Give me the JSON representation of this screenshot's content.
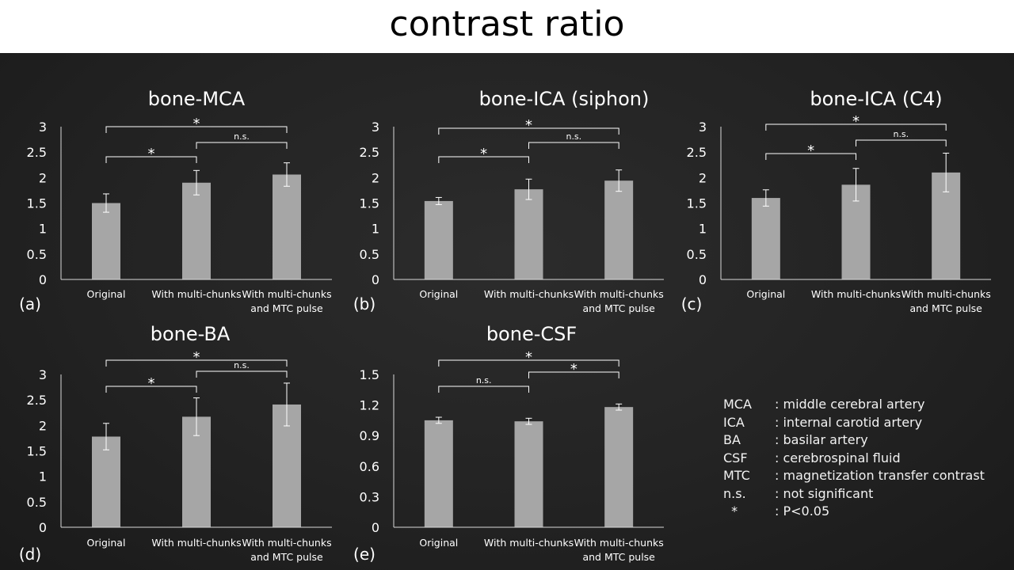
{
  "page": {
    "title": "contrast ratio"
  },
  "chart_data": [
    {
      "type": "bar",
      "panel": "(a)",
      "title": "bone-MCA",
      "categories": [
        "Original",
        "With multi-chunks",
        "With multi-chunks\nand MTC pulse"
      ],
      "values": [
        1.5,
        1.9,
        2.06
      ],
      "errors": [
        0.18,
        0.24,
        0.23
      ],
      "ylim": [
        0,
        3
      ],
      "yticks": [
        0,
        0.5,
        1,
        1.5,
        2,
        2.5,
        3
      ],
      "ytick_labels": [
        "0",
        "0.5",
        "1",
        "1.5",
        "2",
        "2.5",
        "3"
      ],
      "significance": [
        {
          "from": 0,
          "to": 2,
          "label": "*"
        },
        {
          "from": 1,
          "to": 2,
          "label": "n.s."
        },
        {
          "from": 0,
          "to": 1,
          "label": "*"
        }
      ]
    },
    {
      "type": "bar",
      "panel": "(b)",
      "title": "bone-ICA (siphon)",
      "categories": [
        "Original",
        "With multi-chunks",
        "With multi-chunks\nand MTC pulse"
      ],
      "values": [
        1.54,
        1.77,
        1.94
      ],
      "errors": [
        0.07,
        0.2,
        0.21
      ],
      "ylim": [
        0,
        3
      ],
      "yticks": [
        0,
        0.5,
        1,
        1.5,
        2,
        2.5,
        3
      ],
      "ytick_labels": [
        "0",
        "0.5",
        "1",
        "1.5",
        "2",
        "2.5",
        "3"
      ],
      "significance": [
        {
          "from": 0,
          "to": 2,
          "label": "*"
        },
        {
          "from": 1,
          "to": 2,
          "label": "n.s."
        },
        {
          "from": 0,
          "to": 1,
          "label": "*"
        }
      ]
    },
    {
      "type": "bar",
      "panel": "(c)",
      "title": "bone-ICA (C4)",
      "categories": [
        "Original",
        "With multi-chunks",
        "With multi-chunks\nand MTC pulse"
      ],
      "values": [
        1.6,
        1.86,
        2.1
      ],
      "errors": [
        0.16,
        0.32,
        0.38
      ],
      "ylim": [
        0,
        3
      ],
      "yticks": [
        0,
        0.5,
        1,
        1.5,
        2,
        2.5,
        3
      ],
      "ytick_labels": [
        "0",
        "0.5",
        "1",
        "1.5",
        "2",
        "2.5",
        "3"
      ],
      "significance": [
        {
          "from": 0,
          "to": 2,
          "label": "*"
        },
        {
          "from": 1,
          "to": 2,
          "label": "n.s."
        },
        {
          "from": 0,
          "to": 1,
          "label": "*"
        }
      ]
    },
    {
      "type": "bar",
      "panel": "(d)",
      "title": "bone-BA",
      "categories": [
        "Original",
        "With multi-chunks",
        "With multi-chunks\nand MTC pulse"
      ],
      "values": [
        1.78,
        2.17,
        2.41
      ],
      "errors": [
        0.26,
        0.37,
        0.42
      ],
      "ylim": [
        0,
        3
      ],
      "yticks": [
        0,
        0.5,
        1,
        1.5,
        2,
        2.5,
        3
      ],
      "ytick_labels": [
        "0",
        "0.5",
        "1",
        "1.5",
        "2",
        "2.5",
        "3"
      ],
      "significance": [
        {
          "from": 0,
          "to": 2,
          "label": "*"
        },
        {
          "from": 1,
          "to": 2,
          "label": "n.s."
        },
        {
          "from": 0,
          "to": 1,
          "label": "*"
        }
      ]
    },
    {
      "type": "bar",
      "panel": "(e)",
      "title": "bone-CSF",
      "categories": [
        "Original",
        "With multi-chunks",
        "With multi-chunks\nand MTC pulse"
      ],
      "values": [
        1.05,
        1.04,
        1.18
      ],
      "errors": [
        0.03,
        0.03,
        0.03
      ],
      "ylim": [
        0,
        1.5
      ],
      "yticks": [
        0,
        0.3,
        0.6,
        0.9,
        1.2,
        1.5
      ],
      "ytick_labels": [
        "0",
        "0.3",
        "0.6",
        "0.9",
        "1.2",
        "1.5"
      ],
      "significance": [
        {
          "from": 0,
          "to": 2,
          "label": "*"
        },
        {
          "from": 1,
          "to": 2,
          "label": "*"
        },
        {
          "from": 0,
          "to": 1,
          "label": "n.s."
        }
      ]
    }
  ],
  "legend": [
    {
      "abbr": "MCA",
      "definition": ": middle cerebral artery"
    },
    {
      "abbr": "ICA",
      "definition": ": internal carotid artery"
    },
    {
      "abbr": "BA",
      "definition": ": basilar artery"
    },
    {
      "abbr": "CSF",
      "definition": ": cerebrospinal fluid"
    },
    {
      "abbr": "MTC",
      "definition": ": magnetization transfer contrast"
    },
    {
      "abbr": "n.s.",
      "definition": ": not significant"
    },
    {
      "abbr": "  *",
      "definition": ": P<0.05"
    }
  ],
  "colors": {
    "bar": "#a6a6a6",
    "axis": "#d9d9d9",
    "text": "#ffffff",
    "background": "#222222",
    "title_bar": "#ffffff"
  }
}
